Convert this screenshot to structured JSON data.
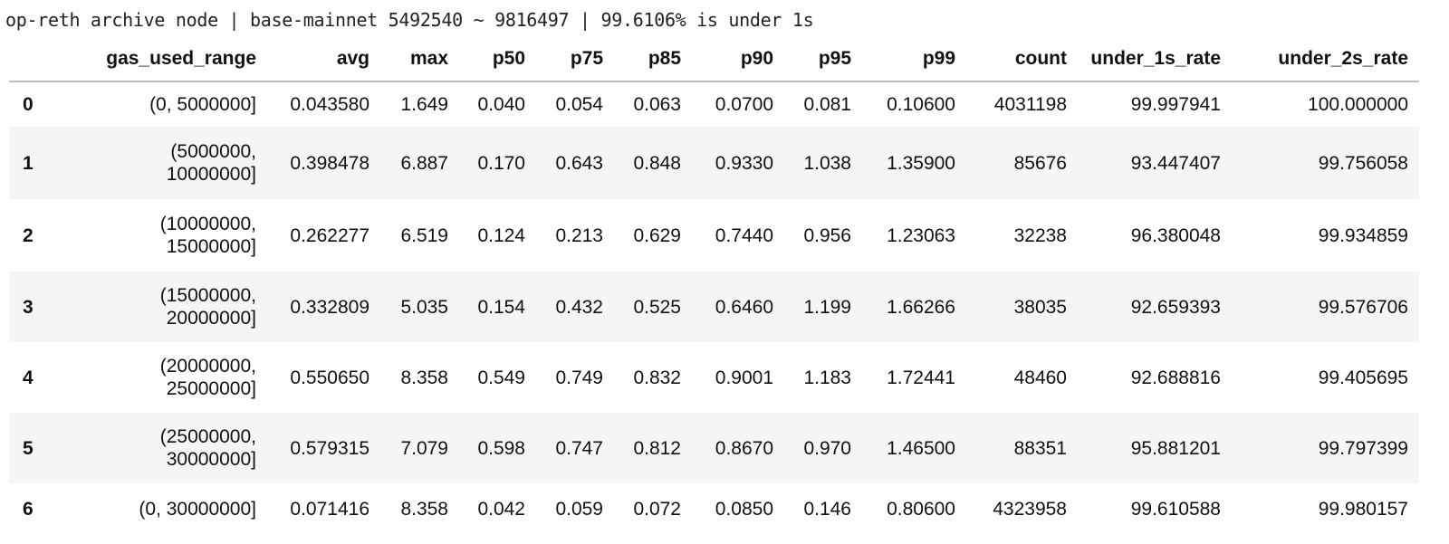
{
  "title": "op-reth archive node | base-mainnet 5492540 ~ 9816497 | 99.6106% is under 1s",
  "table": {
    "columns": [
      "",
      "gas_used_range",
      "avg",
      "max",
      "p50",
      "p75",
      "p85",
      "p90",
      "p95",
      "p99",
      "count",
      "under_1s_rate",
      "under_2s_rate"
    ],
    "rows": [
      [
        "0",
        "(0, 5000000]",
        "0.043580",
        "1.649",
        "0.040",
        "0.054",
        "0.063",
        "0.0700",
        "0.081",
        "0.10600",
        "4031198",
        "99.997941",
        "100.000000"
      ],
      [
        "1",
        "(5000000, 10000000]",
        "0.398478",
        "6.887",
        "0.170",
        "0.643",
        "0.848",
        "0.9330",
        "1.038",
        "1.35900",
        "85676",
        "93.447407",
        "99.756058"
      ],
      [
        "2",
        "(10000000, 15000000]",
        "0.262277",
        "6.519",
        "0.124",
        "0.213",
        "0.629",
        "0.7440",
        "0.956",
        "1.23063",
        "32238",
        "96.380048",
        "99.934859"
      ],
      [
        "3",
        "(15000000, 20000000]",
        "0.332809",
        "5.035",
        "0.154",
        "0.432",
        "0.525",
        "0.6460",
        "1.199",
        "1.66266",
        "38035",
        "92.659393",
        "99.576706"
      ],
      [
        "4",
        "(20000000, 25000000]",
        "0.550650",
        "8.358",
        "0.549",
        "0.749",
        "0.832",
        "0.9001",
        "1.183",
        "1.72441",
        "48460",
        "92.688816",
        "99.405695"
      ],
      [
        "5",
        "(25000000, 30000000]",
        "0.579315",
        "7.079",
        "0.598",
        "0.747",
        "0.812",
        "0.8670",
        "0.970",
        "1.46500",
        "88351",
        "95.881201",
        "99.797399"
      ],
      [
        "6",
        "(0, 30000000]",
        "0.071416",
        "8.358",
        "0.042",
        "0.059",
        "0.072",
        "0.0850",
        "0.146",
        "0.80600",
        "4323958",
        "99.610588",
        "99.980157"
      ]
    ]
  }
}
